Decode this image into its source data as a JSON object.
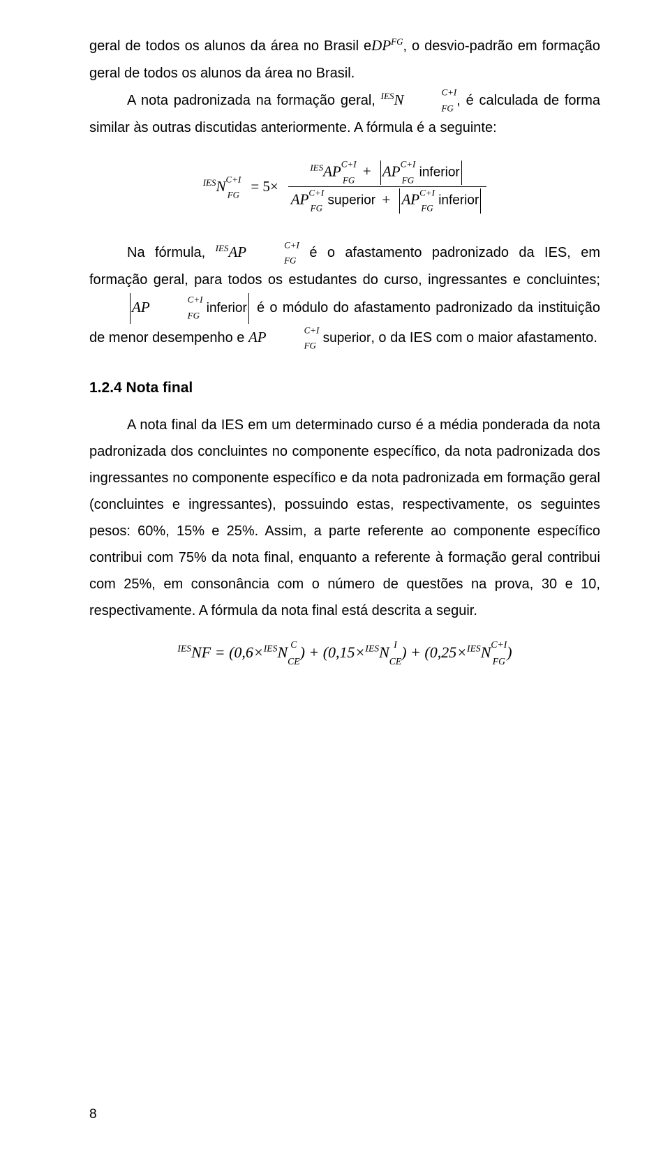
{
  "para1_a": "geral de todos os alunos da área no Brasil e",
  "para1_b": ", o desvio-padrão em formação geral de todos os alunos da área no Brasil.",
  "para2_a": "A nota padronizada na formação geral, ",
  "para2_b": ", é calculada de forma similar às outras discutidas anteriormente. A fórmula é a seguinte:",
  "para3_a": "Na fórmula, ",
  "para3_b": " é o afastamento padronizado da IES, em formação geral, para todos os estudantes do curso, ingressantes e concluintes; ",
  "para3_c": " é o módulo do afastamento padronizado da instituição de menor desempenho e ",
  "para3_d": ", o da IES com o maior afastamento.",
  "heading": "1.2.4   Nota final",
  "para4": "A nota final da IES em um determinado curso é a média ponderada da nota padronizada dos concluintes no componente específico, da nota padronizada dos ingressantes no componente específico e da nota padronizada em formação geral (concluintes e ingressantes), possuindo estas, respectivamente, os seguintes pesos: 60%, 15% e 25%. Assim, a parte referente ao componente específico contribui com 75% da nota final, enquanto a referente à formação geral contribui com 25%, em consonância com o número de questões na prova, 30 e 10, respectivamente. A fórmula da nota final está descrita a seguir.",
  "formula": {
    "lhs_pre": "IES",
    "lhs_sym": "N",
    "lhs_sup": "C+I",
    "lhs_sub": "FG",
    "eq": "= 5×",
    "num_pre": "IES",
    "ap": "AP",
    "inf": "inferior",
    "sup": "superior",
    "plus": "+"
  },
  "inline": {
    "dp": "DP",
    "dp_sup": "FG",
    "n_pre": "IES",
    "n": "N",
    "n_sup": "C+I",
    "n_sub": "FG",
    "ap_pre": "IES",
    "ap": "AP",
    "ap_sup": "C+I",
    "ap_sub": "FG"
  },
  "final": {
    "pre": "IES",
    "nf": "NF",
    "eq": " = (0,6×",
    "n": "N",
    "ce": "CE",
    "c": "C",
    "i": "I",
    "fg": "FG",
    "ci": "C+I",
    "p1": ") + (0,15×",
    "p2": ") + (0,25×",
    "end": ")"
  },
  "page_number": "8"
}
